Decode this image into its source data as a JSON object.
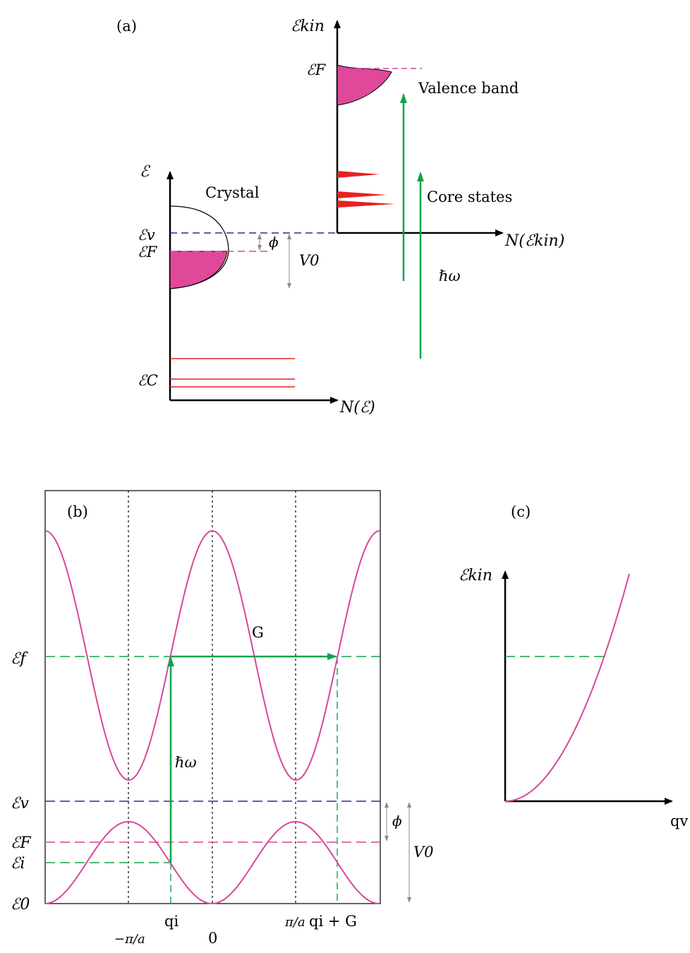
{
  "panel_a": {
    "label": "(a)",
    "ekin_axis": "ℰkin",
    "ef_right": "ℰF",
    "valence_band": "Valence band",
    "core_states": "Core states",
    "crystal": "Crystal",
    "e_axis": "ℰ",
    "ev": "ℰv",
    "ef": "ℰF",
    "phi": "ϕ",
    "v0": "V0",
    "ec": "ℰC",
    "hbar_omega": "ℏω",
    "n_e": "N(ℰ)",
    "n_ekin": "N(ℰkin)"
  },
  "panel_b": {
    "label": "(b)",
    "ef_final": "ℰf",
    "g": "G",
    "hbar_omega": "ℏω",
    "ev": "ℰv",
    "phi": "ϕ",
    "ef": "ℰF",
    "v0": "V0",
    "ei": "ℰi",
    "e0": "ℰ0",
    "tick_neg_pi": "−π/a",
    "tick_qi": "qi",
    "tick_zero": "0",
    "tick_pi": "π/a",
    "tick_qig": "qi + G"
  },
  "panel_c": {
    "label": "(c)",
    "ekin_axis": "ℰkin",
    "qv": "qv"
  },
  "colors": {
    "band": "#d6479b",
    "band_fill": "#e0489a",
    "arrow": "#12a24a",
    "vacuum": "#2b2b8f",
    "core": "#e82020",
    "gray": "#8a8a8a"
  }
}
